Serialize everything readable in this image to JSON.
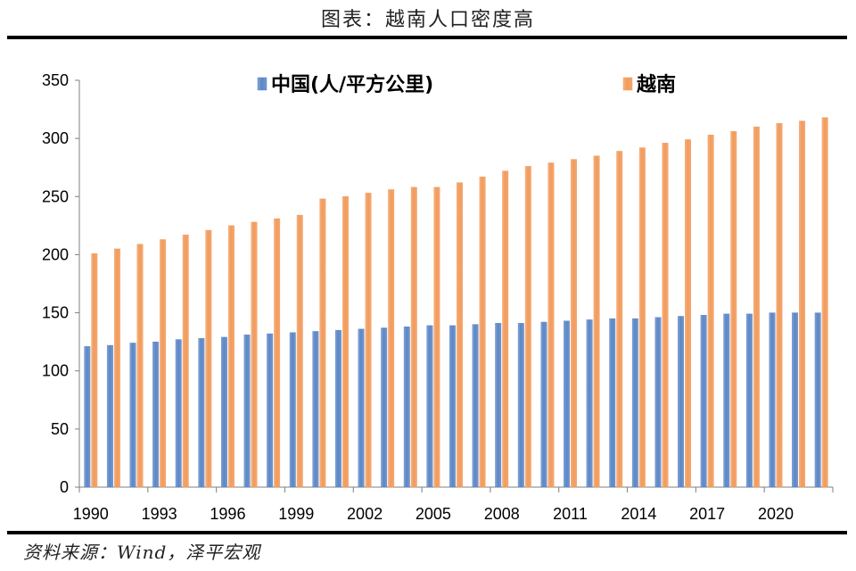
{
  "header": {
    "title": "图表：越南人口密度高"
  },
  "footer": {
    "source": "资料来源：Wind，泽平宏观"
  },
  "colors": {
    "china": "#5b86c6",
    "vietnam": "#f29a5a",
    "axis": "#7f7f7f",
    "rule": "#000000"
  },
  "chart_data": {
    "type": "bar",
    "title": "图表：越南人口密度高",
    "xlabel": "",
    "ylabel": "",
    "ylim": [
      0,
      350
    ],
    "yticks": [
      0,
      50,
      100,
      150,
      200,
      250,
      300,
      350
    ],
    "categories": [
      "1990",
      "1991",
      "1992",
      "1993",
      "1994",
      "1995",
      "1996",
      "1997",
      "1998",
      "1999",
      "2000",
      "2001",
      "2002",
      "2003",
      "2004",
      "2005",
      "2006",
      "2007",
      "2008",
      "2009",
      "2010",
      "2011",
      "2012",
      "2013",
      "2014",
      "2015",
      "2016",
      "2017",
      "2018",
      "2019",
      "2020",
      "2021",
      "2022"
    ],
    "x_tick_labels": [
      "1990",
      "1993",
      "1996",
      "1999",
      "2002",
      "2005",
      "2008",
      "2011",
      "2014",
      "2017",
      "2020"
    ],
    "legend_position": "top",
    "series": [
      {
        "name": "中国(人/平方公里)",
        "color": "#5b86c6",
        "values": [
          121,
          122,
          124,
          125,
          127,
          128,
          129,
          131,
          132,
          133,
          134,
          135,
          136,
          137,
          138,
          139,
          139,
          140,
          141,
          141,
          142,
          143,
          144,
          145,
          145,
          146,
          147,
          148,
          149,
          149,
          150,
          150,
          150
        ]
      },
      {
        "name": "越南",
        "color": "#f29a5a",
        "values": [
          201,
          205,
          209,
          213,
          217,
          221,
          225,
          228,
          231,
          234,
          248,
          250,
          253,
          256,
          258,
          258,
          262,
          267,
          272,
          276,
          279,
          282,
          285,
          289,
          292,
          296,
          299,
          303,
          306,
          310,
          313,
          315,
          318
        ]
      }
    ]
  }
}
